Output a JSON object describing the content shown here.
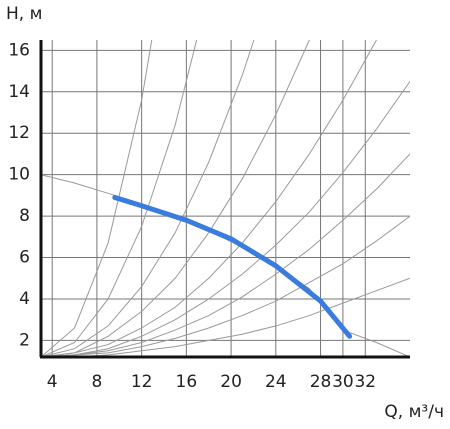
{
  "chart_data": {
    "type": "line",
    "y_label": "H, м",
    "x_label": "Q, м³/ч",
    "xlim": [
      3,
      36
    ],
    "xticks": [
      4,
      8,
      12,
      16,
      20,
      24,
      28,
      30,
      32
    ],
    "ylim": [
      1.2,
      16.5
    ],
    "yticks": [
      2,
      4,
      6,
      8,
      10,
      12,
      14,
      16
    ],
    "grid": true,
    "series": [
      {
        "color": "#999999",
        "width": 1,
        "x": [
          3,
          6,
          9,
          12,
          15,
          18,
          21,
          24,
          27,
          30,
          33,
          36
        ],
        "values": [
          1.2,
          2.6,
          6.7,
          13.6,
          23.2,
          null,
          null,
          null,
          null,
          null,
          null,
          null
        ]
      },
      {
        "color": "#999999",
        "width": 1,
        "x": [
          3,
          6,
          9,
          12,
          15,
          18,
          21,
          24,
          27,
          30,
          33,
          36
        ],
        "values": [
          1.2,
          1.9,
          4.0,
          7.5,
          12.4,
          18.8,
          null,
          null,
          null,
          null,
          null,
          null
        ]
      },
      {
        "color": "#999999",
        "width": 1,
        "x": [
          3,
          6,
          9,
          12,
          15,
          18,
          21,
          24,
          27,
          30,
          33,
          36
        ],
        "values": [
          1.2,
          1.6,
          2.7,
          4.6,
          7.2,
          10.6,
          14.8,
          19.7,
          null,
          null,
          null,
          null
        ]
      },
      {
        "color": "#999999",
        "width": 1,
        "x": [
          3,
          6,
          9,
          12,
          15,
          18,
          21,
          24,
          27,
          30,
          33,
          36
        ],
        "values": [
          1.2,
          1.4,
          2.2,
          3.4,
          5.0,
          7.2,
          9.8,
          12.9,
          16.5,
          null,
          null,
          null
        ]
      },
      {
        "color": "#999999",
        "width": 1,
        "x": [
          3,
          6,
          9,
          12,
          15,
          18,
          21,
          24,
          27,
          30,
          33,
          36
        ],
        "values": [
          1.2,
          1.4,
          1.8,
          2.6,
          3.6,
          5.0,
          6.7,
          8.7,
          11.0,
          13.6,
          16.5,
          null
        ]
      },
      {
        "color": "#999999",
        "width": 1,
        "x": [
          3,
          6,
          9,
          12,
          15,
          18,
          21,
          24,
          27,
          30,
          33,
          36
        ],
        "values": [
          1.2,
          1.3,
          1.6,
          2.2,
          3.0,
          4.0,
          5.2,
          6.6,
          8.2,
          10.1,
          12.2,
          14.5
        ]
      },
      {
        "color": "#999999",
        "width": 1,
        "x": [
          3,
          6,
          9,
          12,
          15,
          18,
          21,
          24,
          27,
          30,
          33,
          36
        ],
        "values": [
          1.2,
          1.3,
          1.5,
          1.9,
          2.5,
          3.2,
          4.1,
          5.2,
          6.4,
          7.8,
          9.3,
          11.0
        ]
      },
      {
        "color": "#999999",
        "width": 1,
        "x": [
          3,
          6,
          9,
          12,
          15,
          18,
          21,
          24,
          27,
          30,
          33,
          36
        ],
        "values": [
          1.2,
          1.3,
          1.4,
          1.7,
          2.1,
          2.6,
          3.2,
          3.9,
          4.8,
          5.7,
          6.8,
          8.0
        ]
      },
      {
        "color": "#999999",
        "width": 1,
        "x": [
          3,
          6,
          9,
          12,
          15,
          18,
          21,
          24,
          27,
          30,
          33,
          36
        ],
        "values": [
          1.2,
          1.2,
          1.3,
          1.5,
          1.7,
          2.0,
          2.3,
          2.7,
          3.2,
          3.8,
          4.4,
          5.0
        ]
      },
      {
        "color": "#999999",
        "width": 1,
        "x": [
          3,
          6,
          9,
          12,
          15,
          18,
          21,
          24,
          27,
          30,
          33,
          36
        ],
        "values": [
          10.0,
          9.6,
          9.1,
          8.6,
          8.0,
          7.3,
          6.5,
          5.6,
          4.5,
          2.5,
          1.9,
          1.2
        ]
      },
      {
        "color": "#3a7be0",
        "width": 5,
        "x": [
          9.6,
          12,
          16,
          20,
          24,
          28,
          30.6
        ],
        "values": [
          8.9,
          8.5,
          7.8,
          6.9,
          5.6,
          3.9,
          2.2
        ]
      }
    ]
  }
}
